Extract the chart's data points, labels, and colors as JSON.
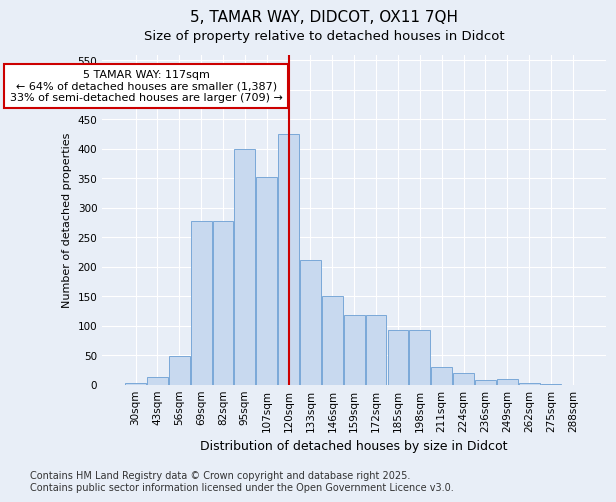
{
  "title": "5, TAMAR WAY, DIDCOT, OX11 7QH",
  "subtitle": "Size of property relative to detached houses in Didcot",
  "xlabel": "Distribution of detached houses by size in Didcot",
  "ylabel": "Number of detached properties",
  "categories": [
    "30sqm",
    "43sqm",
    "56sqm",
    "69sqm",
    "82sqm",
    "95sqm",
    "107sqm",
    "120sqm",
    "133sqm",
    "146sqm",
    "159sqm",
    "172sqm",
    "185sqm",
    "198sqm",
    "211sqm",
    "224sqm",
    "236sqm",
    "249sqm",
    "262sqm",
    "275sqm",
    "288sqm"
  ],
  "values": [
    3,
    12,
    48,
    278,
    278,
    400,
    352,
    425,
    212,
    150,
    118,
    118,
    92,
    92,
    30,
    20,
    8,
    10,
    3,
    1,
    0
  ],
  "bar_color": "#c8d9ef",
  "bar_edge_color": "#7aa8d8",
  "vline_index": 7,
  "vline_color": "#cc0000",
  "annotation_text": "5 TAMAR WAY: 117sqm\n← 64% of detached houses are smaller (1,387)\n33% of semi-detached houses are larger (709) →",
  "annotation_box_color": "#ffffff",
  "annotation_box_edge": "#cc0000",
  "ylim": [
    0,
    560
  ],
  "yticks": [
    0,
    50,
    100,
    150,
    200,
    250,
    300,
    350,
    400,
    450,
    500,
    550
  ],
  "background_color": "#e8eef7",
  "grid_color": "#ffffff",
  "footnote": "Contains HM Land Registry data © Crown copyright and database right 2025.\nContains public sector information licensed under the Open Government Licence v3.0.",
  "title_fontsize": 11,
  "subtitle_fontsize": 9.5,
  "xlabel_fontsize": 9,
  "ylabel_fontsize": 8,
  "tick_fontsize": 7.5,
  "annot_fontsize": 8,
  "footnote_fontsize": 7
}
